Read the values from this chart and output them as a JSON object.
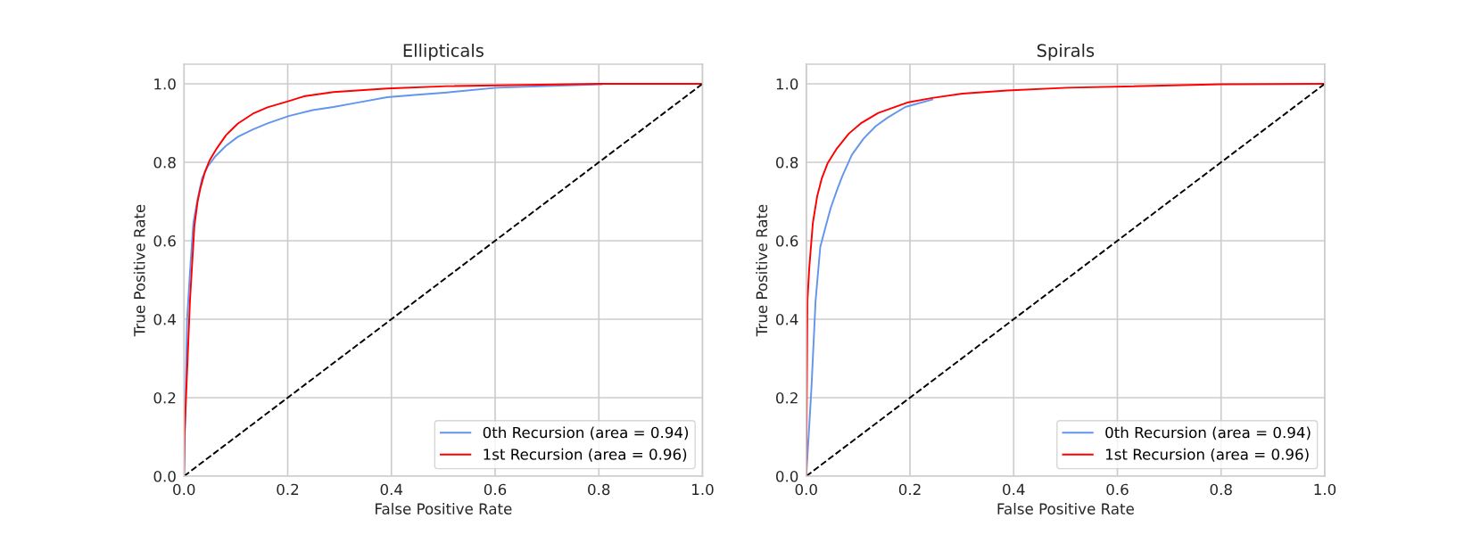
{
  "chart_data": [
    {
      "type": "line",
      "title": "Ellipticals",
      "xlabel": "False Positive Rate",
      "ylabel": "True Positive Rate",
      "xlim": [
        0,
        1
      ],
      "ylim": [
        0,
        1.05
      ],
      "xticks": [
        {
          "value": 0,
          "label": "0.0"
        },
        {
          "value": 0.2,
          "label": "0.2"
        },
        {
          "value": 0.4,
          "label": "0.4"
        },
        {
          "value": 0.6,
          "label": "0.6"
        },
        {
          "value": 0.8,
          "label": "0.8"
        },
        {
          "value": 1,
          "label": "1.0"
        }
      ],
      "yticks": [
        {
          "value": 0,
          "label": "0.0"
        },
        {
          "value": 0.2,
          "label": "0.2"
        },
        {
          "value": 0.4,
          "label": "0.4"
        },
        {
          "value": 0.6,
          "label": "0.6"
        },
        {
          "value": 0.8,
          "label": "0.8"
        },
        {
          "value": 1,
          "label": "1.0"
        }
      ],
      "grid": true,
      "legend": "bottom right",
      "series": [
        {
          "name": "0th Recursion (area = 0.94)",
          "color": "#6495ed",
          "x": [
            0,
            0.006,
            0.0115,
            0.018,
            0.026,
            0.035,
            0.046,
            0.061,
            0.081,
            0.104,
            0.133,
            0.161,
            0.202,
            0.248,
            0.288,
            0.334,
            0.392,
            0.45,
            0.507,
            0.603,
            0.805
          ],
          "values": [
            0,
            0.4,
            0.52,
            0.645,
            0.705,
            0.76,
            0.79,
            0.816,
            0.842,
            0.865,
            0.884,
            0.899,
            0.918,
            0.933,
            0.941,
            0.952,
            0.966,
            0.972,
            0.978,
            0.99,
            0.999
          ]
        },
        {
          "name": "1st Recursion (area = 0.96)",
          "color": "#ff0000",
          "x": [
            0,
            0.001,
            0.0115,
            0.02,
            0.026,
            0.032,
            0.04,
            0.049,
            0.063,
            0.081,
            0.104,
            0.133,
            0.161,
            0.202,
            0.231,
            0.288,
            0.392,
            0.507,
            0.8,
            1
          ],
          "values": [
            0,
            0.105,
            0.447,
            0.637,
            0.698,
            0.736,
            0.774,
            0.804,
            0.835,
            0.869,
            0.899,
            0.924,
            0.94,
            0.956,
            0.968,
            0.979,
            0.988,
            0.994,
            1,
            1
          ]
        },
        {
          "color": "#000000",
          "line_style": "dashed",
          "x": [
            0,
            1
          ],
          "values": [
            0,
            1
          ]
        }
      ]
    },
    {
      "type": "line",
      "title": "Spirals",
      "xlabel": "False Positive Rate",
      "ylabel": "True Positive Rate",
      "xlim": [
        0,
        1
      ],
      "ylim": [
        0,
        1.05
      ],
      "xticks": [
        {
          "value": 0,
          "label": "0.0"
        },
        {
          "value": 0.2,
          "label": "0.2"
        },
        {
          "value": 0.4,
          "label": "0.4"
        },
        {
          "value": 0.6,
          "label": "0.6"
        },
        {
          "value": 0.8,
          "label": "0.8"
        },
        {
          "value": 1,
          "label": "1.0"
        }
      ],
      "yticks": [
        {
          "value": 0,
          "label": "0.0"
        },
        {
          "value": 0.2,
          "label": "0.2"
        },
        {
          "value": 0.4,
          "label": "0.4"
        },
        {
          "value": 0.6,
          "label": "0.6"
        },
        {
          "value": 0.8,
          "label": "0.8"
        },
        {
          "value": 1,
          "label": "1.0"
        }
      ],
      "grid": true,
      "legend": "bottom right",
      "series": [
        {
          "name": "0th Recursion (area = 0.94)",
          "color": "#6495ed",
          "x": [
            0,
            0.0098,
            0.018,
            0.027,
            0.036,
            0.047,
            0.059,
            0.07,
            0.088,
            0.111,
            0.134,
            0.157,
            0.191,
            0.243
          ],
          "values": [
            0,
            0.219,
            0.447,
            0.584,
            0.629,
            0.683,
            0.728,
            0.766,
            0.819,
            0.861,
            0.892,
            0.914,
            0.941,
            0.96
          ]
        },
        {
          "name": "1st Recursion (area = 0.96)",
          "color": "#ff0000",
          "x": [
            0,
            0.0023,
            0.0058,
            0.0127,
            0.021,
            0.03,
            0.041,
            0.059,
            0.082,
            0.105,
            0.139,
            0.197,
            0.243,
            0.301,
            0.387,
            0.503,
            0.8,
            1
          ],
          "values": [
            0,
            0.447,
            0.531,
            0.645,
            0.713,
            0.759,
            0.797,
            0.835,
            0.873,
            0.899,
            0.926,
            0.953,
            0.964,
            0.975,
            0.983,
            0.99,
            0.999,
            1
          ]
        },
        {
          "color": "#000000",
          "line_style": "dashed",
          "x": [
            0,
            1
          ],
          "values": [
            0,
            1
          ]
        }
      ]
    }
  ]
}
